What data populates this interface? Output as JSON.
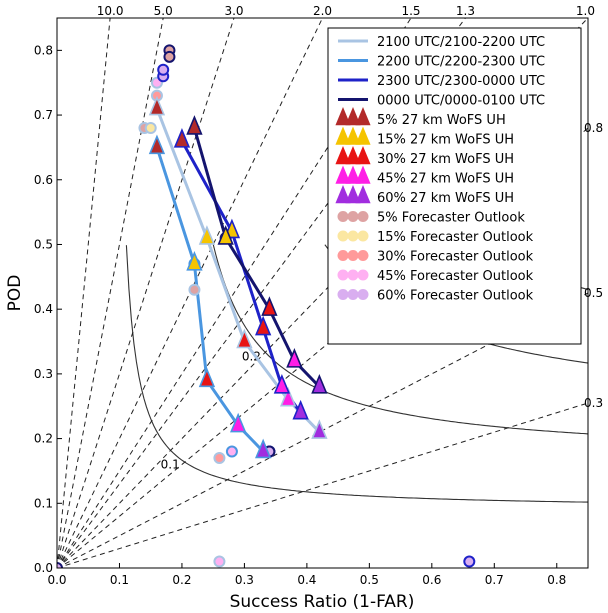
{
  "chart_data": {
    "type": "scatter",
    "subtype": "performance-diagram",
    "xlabel": "Success Ratio (1-FAR)",
    "ylabel": "POD",
    "xlim": [
      0,
      0.85
    ],
    "ylim": [
      0,
      0.85
    ],
    "xticks": [
      "0.0",
      "0.1",
      "0.2",
      "0.3",
      "0.4",
      "0.5",
      "0.6",
      "0.7",
      "0.8"
    ],
    "yticks": [
      "0.0",
      "0.1",
      "0.2",
      "0.3",
      "0.4",
      "0.5",
      "0.6",
      "0.7",
      "0.8"
    ],
    "bias_lines": [
      {
        "value": 10.0,
        "label": "10.0"
      },
      {
        "value": 5.0,
        "label": "5.0"
      },
      {
        "value": 3.0,
        "label": "3.0"
      },
      {
        "value": 2.0,
        "label": "2.0"
      },
      {
        "value": 1.5,
        "label": "1.5"
      },
      {
        "value": 1.3,
        "label": "1.3"
      },
      {
        "value": 1.0,
        "label": "1.0"
      },
      {
        "value": 0.8,
        "label": "0.8"
      },
      {
        "value": 0.5,
        "label": "0.5"
      },
      {
        "value": 0.3,
        "label": "0.3"
      }
    ],
    "csi_lines": [
      {
        "value": 0.1,
        "label": "0.1"
      },
      {
        "value": 0.2,
        "label": "0.2"
      },
      {
        "value": 0.3,
        "label": ""
      },
      {
        "value": 0.4,
        "label": ""
      }
    ],
    "legend": {
      "placement": "top-right",
      "lines": [
        {
          "label": "2100 UTC/2100-2200 UTC",
          "color": "#a9c4e3"
        },
        {
          "label": "2200 UTC/2200-2300 UTC",
          "color": "#4a96e0"
        },
        {
          "label": "2300 UTC/2300-0000 UTC",
          "color": "#1e22c8"
        },
        {
          "label": "0000 UTC/0000-0100 UTC",
          "color": "#14146e"
        }
      ],
      "wofs": [
        {
          "label": "5% 27 km WoFS UH",
          "color": "#b32a2a"
        },
        {
          "label": "15% 27 km WoFS UH",
          "color": "#f5c400"
        },
        {
          "label": "30% 27 km WoFS UH",
          "color": "#e81414"
        },
        {
          "label": "45% 27 km WoFS UH",
          "color": "#ff1ee6"
        },
        {
          "label": "60% 27 km WoFS UH",
          "color": "#a12ddf"
        }
      ],
      "outlooks": [
        {
          "label": "5% Forecaster Outlook",
          "color": "#dea3a3"
        },
        {
          "label": "15% Forecaster Outlook",
          "color": "#fbe7a1"
        },
        {
          "label": "30% Forecaster Outlook",
          "color": "#ff9a9a"
        },
        {
          "label": "45% Forecaster Outlook",
          "color": "#ffb0f2"
        },
        {
          "label": "60% Forecaster Outlook",
          "color": "#d9aef0"
        }
      ]
    },
    "series": [
      {
        "name": "2100 UTC/2100-2200 UTC",
        "color": "#a9c4e3",
        "wofs": [
          [
            0.16,
            0.71,
            "5%"
          ],
          [
            0.24,
            0.51,
            "15%"
          ],
          [
            0.3,
            0.35,
            "30%"
          ],
          [
            0.37,
            0.26,
            "45%"
          ],
          [
            0.42,
            0.21,
            "60%"
          ]
        ],
        "outlooks": [
          [
            0.14,
            0.68,
            "5%"
          ],
          [
            0.15,
            0.68,
            "15%"
          ],
          [
            0.16,
            0.73,
            "30%"
          ],
          [
            0.16,
            0.75,
            "45%"
          ],
          [
            0.22,
            0.43,
            "5%"
          ],
          [
            0.26,
            0.17,
            "30%"
          ],
          [
            0.26,
            0.01,
            "45%"
          ]
        ]
      },
      {
        "name": "2200 UTC/2200-2300 UTC",
        "color": "#4a96e0",
        "wofs": [
          [
            0.16,
            0.65,
            "5%"
          ],
          [
            0.22,
            0.47,
            "15%"
          ],
          [
            0.24,
            0.29,
            "30%"
          ],
          [
            0.29,
            0.22,
            "45%"
          ],
          [
            0.33,
            0.18,
            "60%"
          ]
        ],
        "outlooks": [
          [
            0.22,
            0.47,
            "45%"
          ],
          [
            0.28,
            0.18,
            "45%"
          ],
          [
            0.34,
            0.18,
            "60%"
          ]
        ]
      },
      {
        "name": "2300 UTC/2300-0000 UTC",
        "color": "#1e22c8",
        "wofs": [
          [
            0.2,
            0.66,
            "5%"
          ],
          [
            0.28,
            0.52,
            "15%"
          ],
          [
            0.33,
            0.37,
            "30%"
          ],
          [
            0.36,
            0.28,
            "45%"
          ],
          [
            0.39,
            0.24,
            "60%"
          ]
        ],
        "outlooks": [
          [
            0.17,
            0.76,
            "60%"
          ],
          [
            0.17,
            0.77,
            "60%"
          ],
          [
            0.34,
            0.18,
            "60%"
          ],
          [
            0.66,
            0.01,
            "60%"
          ]
        ]
      },
      {
        "name": "0000 UTC/0000-0100 UTC",
        "color": "#14146e",
        "wofs": [
          [
            0.22,
            0.68,
            "5%"
          ],
          [
            0.27,
            0.51,
            "15%"
          ],
          [
            0.34,
            0.4,
            "30%"
          ],
          [
            0.38,
            0.32,
            "45%"
          ],
          [
            0.42,
            0.28,
            "60%"
          ]
        ],
        "outlooks": [
          [
            0.18,
            0.8,
            "5%"
          ],
          [
            0.18,
            0.79,
            "5%"
          ],
          [
            0.27,
            0.51,
            "5%"
          ],
          [
            0.34,
            0.18,
            "60%"
          ],
          [
            0.0,
            0.0,
            "60%"
          ]
        ]
      }
    ]
  }
}
